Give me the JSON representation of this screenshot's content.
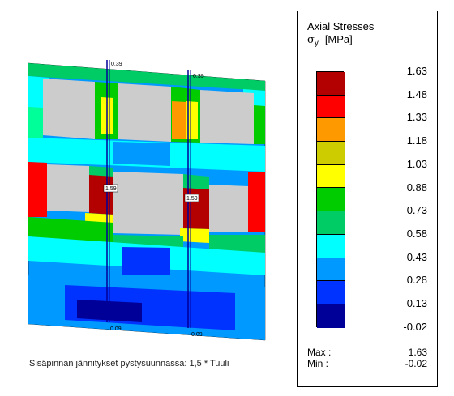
{
  "legend": {
    "title_line1": "Axial Stresses",
    "title_sigma": "σ",
    "title_sub": "y",
    "title_unit": "- [MPa]",
    "colors": [
      "#b30000",
      "#ff0000",
      "#ff9900",
      "#cccc00",
      "#ffff00",
      "#00cc00",
      "#00cc66",
      "#00ffff",
      "#0099ff",
      "#0033ff",
      "#000099"
    ],
    "ticks": [
      "1.63",
      "1.48",
      "1.33",
      "1.18",
      "1.03",
      "0.88",
      "0.73",
      "0.58",
      "0.43",
      "0.28",
      "0.13",
      "-0.02"
    ],
    "max_label": "Max :",
    "max_value": "1.63",
    "min_label": "Min :",
    "min_value": "-0.02"
  },
  "annotations": {
    "top_left": "0.39",
    "top_right": "0.39",
    "mid_left": "1.59",
    "mid_right": "1.59",
    "bottom_left": "0.09",
    "bottom_right": "0.09"
  },
  "caption": "Sisäpinnan jännitykset pystysuunnassa: 1,5 * Tuuli"
}
